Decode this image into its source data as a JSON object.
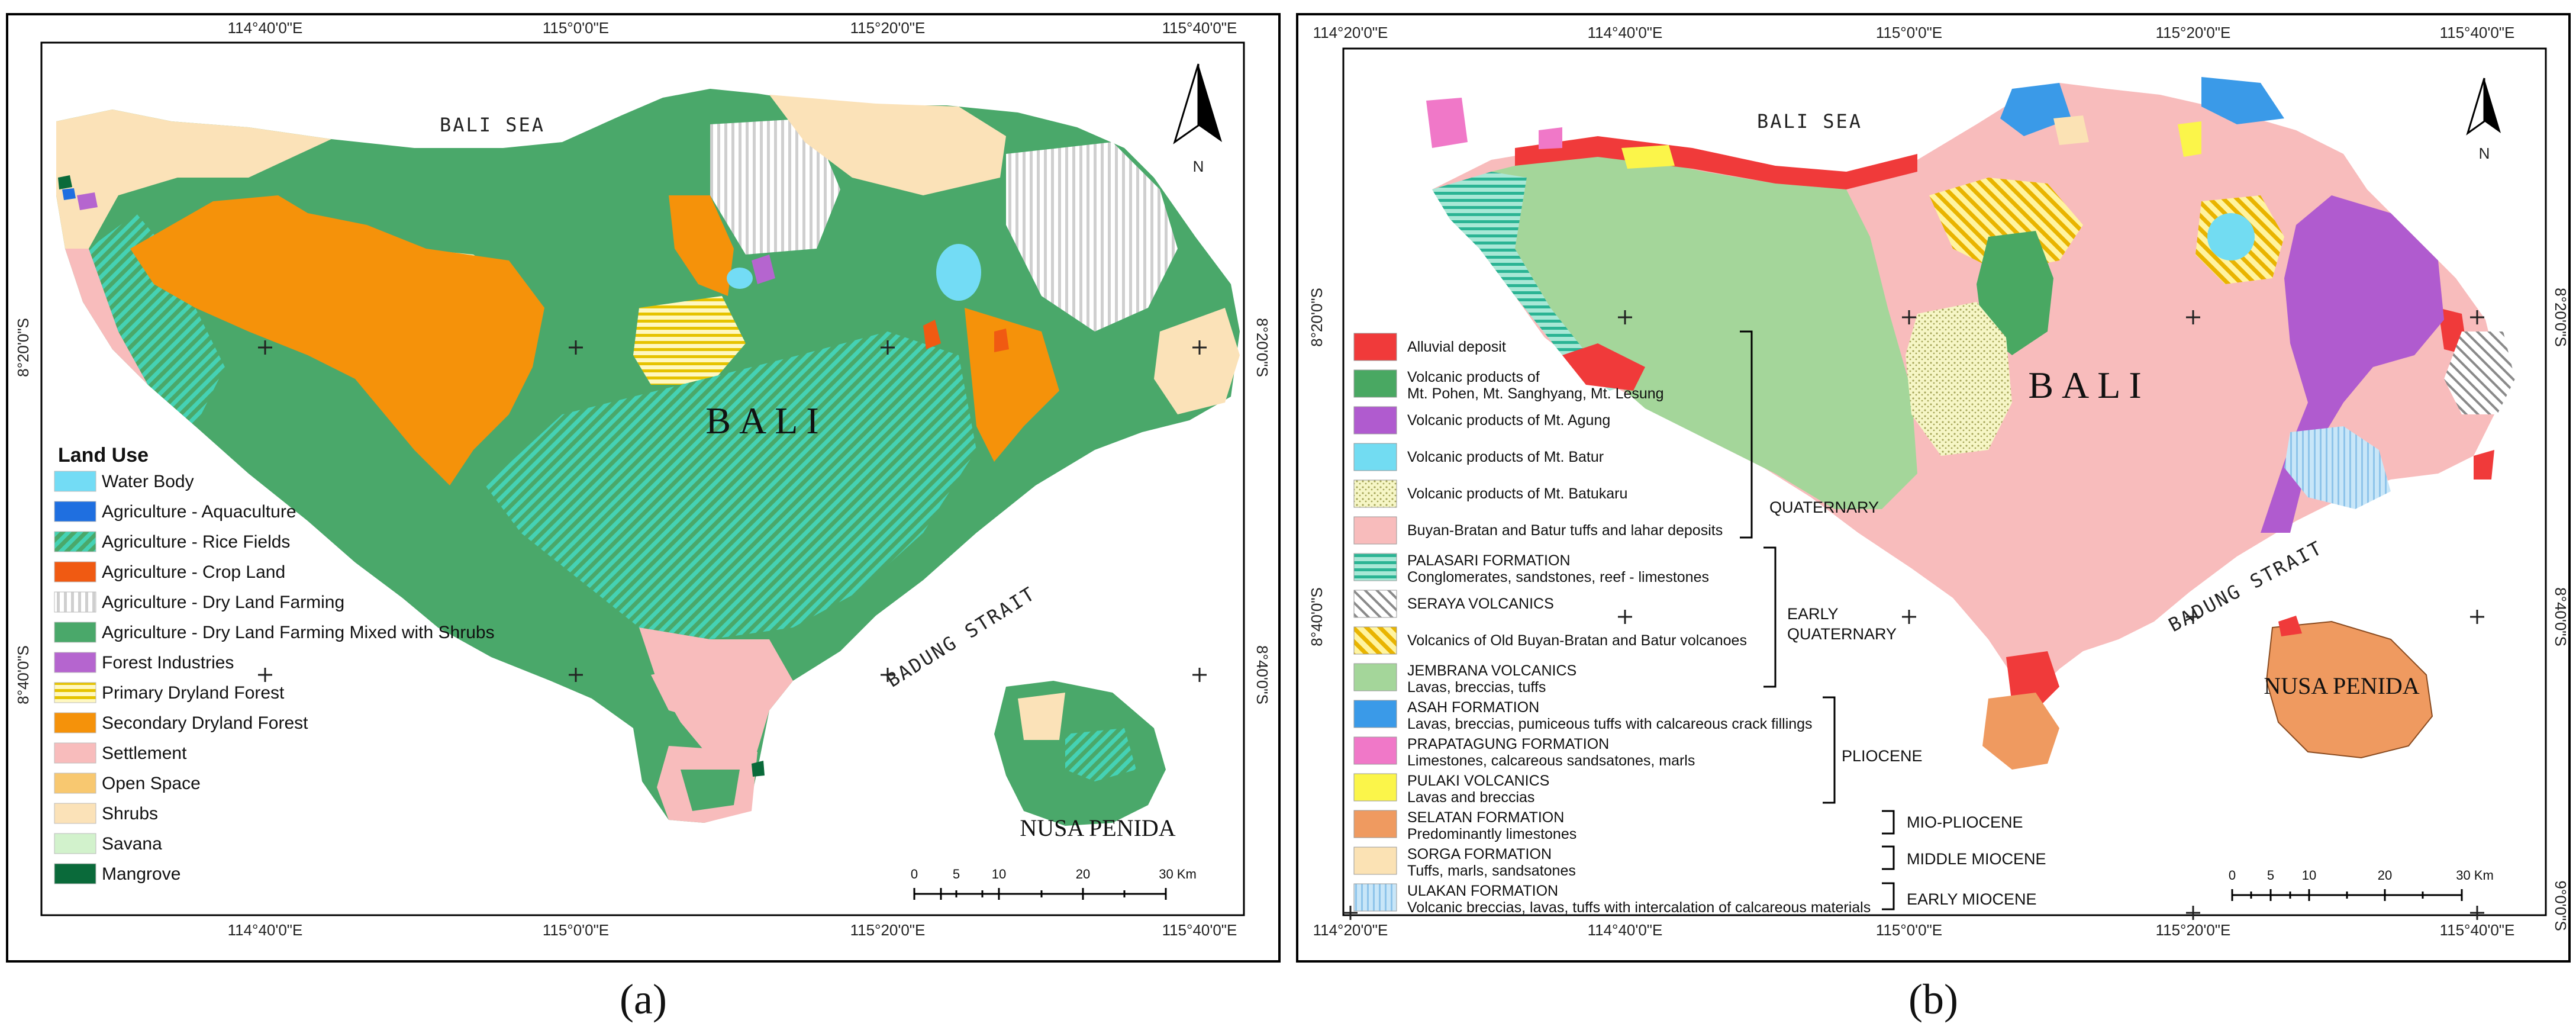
{
  "panel_a": {
    "top_coords": [
      "114°40'0\"E",
      "115°0'0\"E",
      "115°20'0\"E",
      "115°40'0\"E"
    ],
    "bottom_coords": [
      "114°40'0\"E",
      "115°0'0\"E",
      "115°20'0\"E",
      "115°40'0\"E"
    ],
    "left_coords": [
      "8°20'0\"S",
      "8°40'0\"S"
    ],
    "right_coords": [
      "8°20'0\"S",
      "8°40'0\"S"
    ],
    "sea_label": "BALI SEA",
    "strait_label": "BADUNG STRAIT",
    "island_label": "BALI",
    "small_island_label": "NUSA PENIDA",
    "north_label": "N",
    "legend_title": "Land Use",
    "legend": [
      {
        "label": "Water Body",
        "color": "#73dcf5",
        "pattern": "solid"
      },
      {
        "label": "Agriculture - Aquaculture",
        "color": "#1f6fe0",
        "pattern": "solid"
      },
      {
        "label": "Agriculture - Rice Fields",
        "color": "#3fc6a4",
        "pattern": "hatch-teal"
      },
      {
        "label": "Agriculture - Crop Land",
        "color": "#f05a12",
        "pattern": "solid"
      },
      {
        "label": "Agriculture - Dry Land Farming",
        "color": "#d8d8d8",
        "pattern": "vlines"
      },
      {
        "label": "Agriculture - Dry Land Farming Mixed with Shrubs",
        "color": "#4aa86a",
        "pattern": "solid"
      },
      {
        "label": "Forest Industries",
        "color": "#b565cf",
        "pattern": "solid"
      },
      {
        "label": "Primary Dryland Forest",
        "color": "#e6c300",
        "pattern": "hlines-yellow"
      },
      {
        "label": "Secondary Dryland Forest",
        "color": "#f5920a",
        "pattern": "solid"
      },
      {
        "label": "Settlement",
        "color": "#f8bcbc",
        "pattern": "solid"
      },
      {
        "label": "Open Space",
        "color": "#f8c870",
        "pattern": "solid"
      },
      {
        "label": "Shrubs",
        "color": "#fbe2b8",
        "pattern": "solid"
      },
      {
        "label": "Savana",
        "color": "#d2f2cc",
        "pattern": "solid"
      },
      {
        "label": "Mangrove",
        "color": "#0a6a3a",
        "pattern": "solid"
      }
    ],
    "scale_labels": [
      "0",
      "5",
      "10",
      "20",
      "30 Km"
    ],
    "caption": "(a)"
  },
  "panel_b": {
    "top_coords": [
      "114°20'0\"E",
      "114°40'0\"E",
      "115°0'0\"E",
      "115°20'0\"E",
      "115°40'0\"E"
    ],
    "bottom_coords": [
      "114°20'0\"E",
      "114°40'0\"E",
      "115°0'0\"E",
      "115°20'0\"E",
      "115°40'0\"E"
    ],
    "left_coords": [
      "8°20'0\"S",
      "8°40'0\"S"
    ],
    "right_coords": [
      "8°20'0\"S",
      "8°40'0\"S",
      "9°0'0\"S"
    ],
    "sea_label": "BALI SEA",
    "strait_label": "BADUNG STRAIT",
    "island_label": "BALI",
    "small_island_label": "NUSA PENIDA",
    "north_label": "N",
    "legend": [
      {
        "line1": "Alluvial deposit",
        "line2": "",
        "color": "#f03a3a",
        "pattern": "solid"
      },
      {
        "line1": "Volcanic products of",
        "line2": "Mt. Pohen, Mt. Sanghyang, Mt. Lesung",
        "color": "#49a862",
        "pattern": "solid"
      },
      {
        "line1": "Volcanic products of Mt. Agung",
        "line2": "",
        "color": "#b05bcf",
        "pattern": "solid"
      },
      {
        "line1": "Volcanic products of Mt. Batur",
        "line2": "",
        "color": "#72dcf2",
        "pattern": "solid"
      },
      {
        "line1": "Volcanic products of Mt. Batukaru",
        "line2": "",
        "color": "#f6f6c6",
        "pattern": "dots"
      },
      {
        "line1": "Buyan-Bratan and Batur tuffs and lahar deposits",
        "line2": "",
        "color": "#f8bcbc",
        "pattern": "solid"
      },
      {
        "line1": "PALASARI FORMATION",
        "line2": "Conglomerates, sandstones, reef - limestones",
        "color": "#3fc6a4",
        "pattern": "hlines-teal"
      },
      {
        "line1": "SERAYA VOLCANICS",
        "line2": "",
        "color": "#bdbdbd",
        "pattern": "diag-grey"
      },
      {
        "line1": "Volcanics of Old Buyan-Bratan and Batur volcanoes",
        "line2": "",
        "color": "#e9b400",
        "pattern": "diag-yellow"
      },
      {
        "line1": "JEMBRANA VOLCANICS",
        "line2": "Lavas, breccias, tuffs",
        "color": "#a4d69a",
        "pattern": "solid"
      },
      {
        "line1": "ASAH FORMATION",
        "line2": "Lavas, breccias, pumiceous tuffs with calcareous crack fillings",
        "color": "#3a9ae8",
        "pattern": "solid"
      },
      {
        "line1": "PRAPATAGUNG FORMATION",
        "line2": "Limestones, calcareous sandsatones, marls",
        "color": "#f078c8",
        "pattern": "solid"
      },
      {
        "line1": "PULAKI VOLCANICS",
        "line2": "Lavas and breccias",
        "color": "#fbf54a",
        "pattern": "solid"
      },
      {
        "line1": "SELATAN FORMATION",
        "line2": "Predominantly limestones",
        "color": "#ef9a60",
        "pattern": "solid"
      },
      {
        "line1": "SORGA FORMATION",
        "line2": "Tuffs, marls, sandsatones",
        "color": "#fbe2b4",
        "pattern": "solid"
      },
      {
        "line1": "ULAKAN FORMATION",
        "line2": "Volcanic breccias, lavas, tuffs with intercalation of calcareous materials",
        "color": "#b0d8f2",
        "pattern": "dotblue"
      }
    ],
    "age_labels": {
      "quaternary": "QUATERNARY",
      "early_quaternary_1": "EARLY",
      "early_quaternary_2": "QUATERNARY",
      "pliocene": "PLIOCENE",
      "mio_pliocene": "MIO-PLIOCENE",
      "middle_miocene": "MIDDLE MIOCENE",
      "early_miocene": "EARLY MIOCENE"
    },
    "scale_labels": [
      "0",
      "5",
      "10",
      "20",
      "30 Km"
    ],
    "caption": "(b)"
  }
}
